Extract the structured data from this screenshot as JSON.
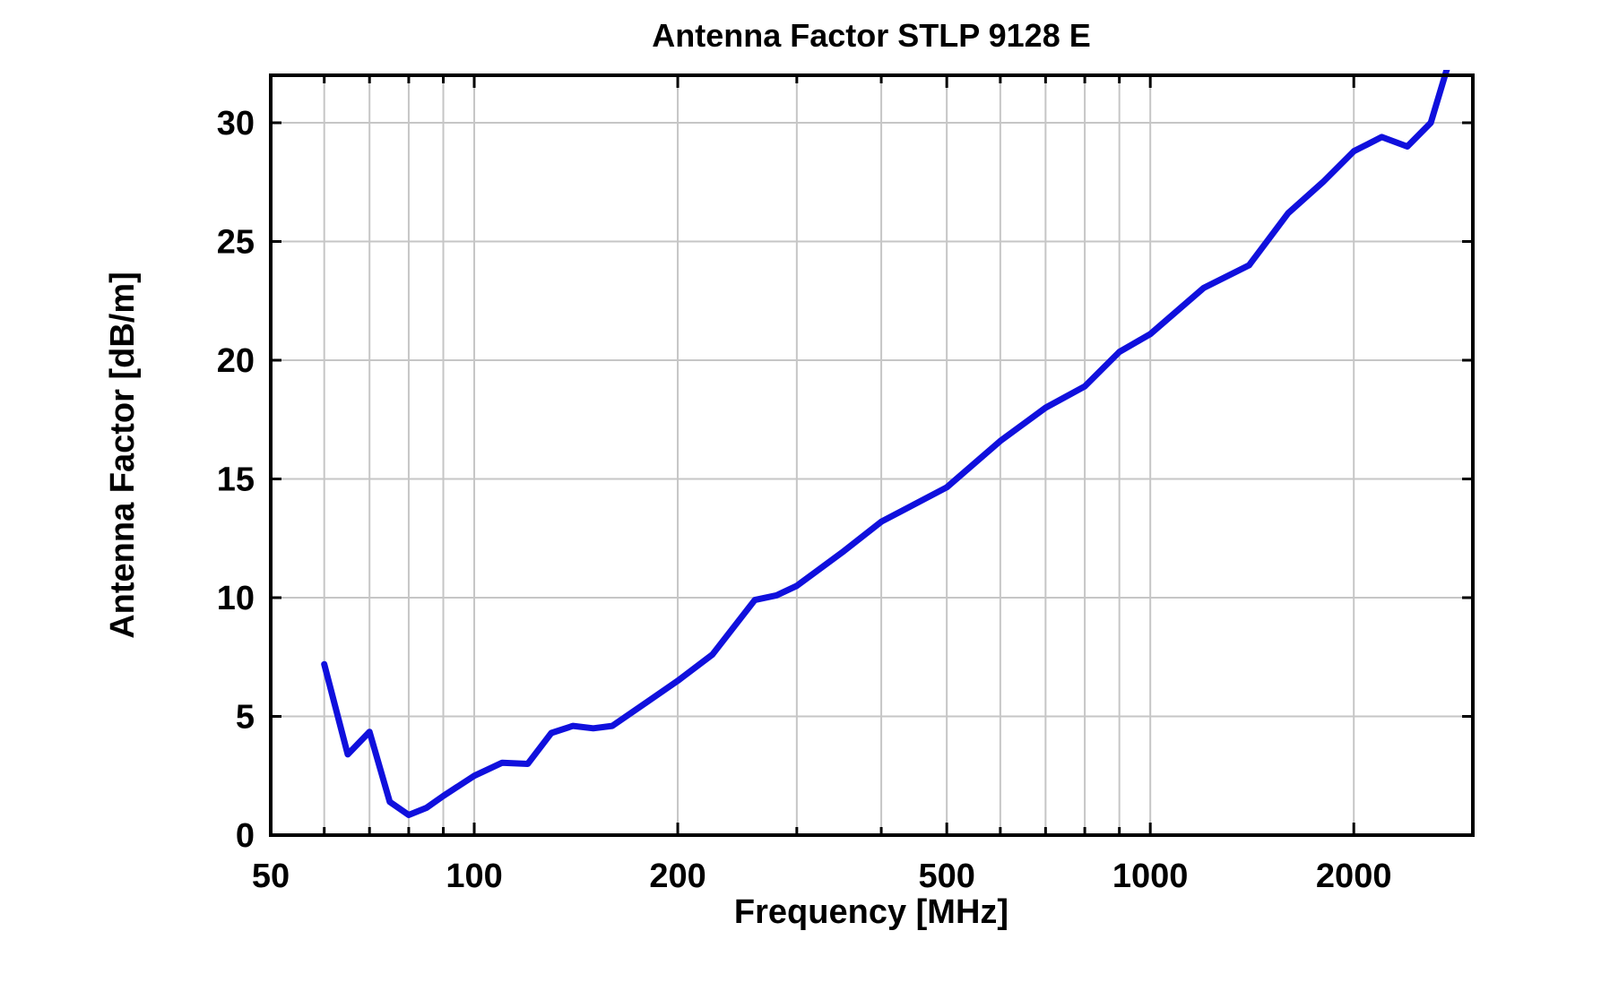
{
  "figure": {
    "background": "#ffffff",
    "frame_color": "#000000",
    "grid_color": "#c6c6c6"
  },
  "chart_data": {
    "type": "line",
    "title": "Antenna Factor STLP 9128 E",
    "xlabel": "Frequency [MHz]",
    "ylabel": "Antenna Factor [dB/m]",
    "x_scale": "log",
    "xlim": [
      50,
      3000
    ],
    "ylim": [
      0,
      32
    ],
    "grid": true,
    "legend": "none",
    "line_color": "#1010dd",
    "x_ticks_labeled": [
      {
        "value": 50,
        "label": "50"
      },
      {
        "value": 100,
        "label": "100"
      },
      {
        "value": 200,
        "label": "200"
      },
      {
        "value": 500,
        "label": "500"
      },
      {
        "value": 1000,
        "label": "1000"
      },
      {
        "value": 2000,
        "label": "2000"
      }
    ],
    "x_gridlines": [
      60,
      70,
      80,
      90,
      100,
      200,
      300,
      400,
      500,
      600,
      700,
      800,
      900,
      1000,
      2000,
      3000
    ],
    "y_ticks": [
      {
        "value": 0,
        "label": "0"
      },
      {
        "value": 5,
        "label": "5"
      },
      {
        "value": 10,
        "label": "10"
      },
      {
        "value": 15,
        "label": "15"
      },
      {
        "value": 20,
        "label": "20"
      },
      {
        "value": 25,
        "label": "25"
      },
      {
        "value": 30,
        "label": "30"
      }
    ],
    "series": [
      {
        "name": "Antenna Factor STLP 9128 E",
        "x_mhz": [
          60,
          65,
          70,
          75,
          80,
          85,
          90,
          100,
          110,
          120,
          130,
          140,
          150,
          160,
          180,
          200,
          225,
          260,
          280,
          300,
          350,
          400,
          500,
          600,
          700,
          800,
          900,
          1000,
          1200,
          1400,
          1600,
          1800,
          2000,
          2200,
          2400,
          2600,
          3000
        ],
        "af_db_m": [
          7.2,
          3.4,
          4.35,
          1.4,
          0.85,
          1.15,
          1.65,
          2.5,
          3.05,
          3.0,
          4.3,
          4.6,
          4.5,
          4.6,
          5.6,
          6.5,
          7.6,
          9.9,
          10.1,
          10.5,
          11.9,
          13.2,
          14.65,
          16.6,
          18.0,
          18.9,
          20.35,
          21.1,
          23.05,
          24.0,
          26.2,
          27.5,
          28.8,
          29.4,
          29.0,
          30.0,
          35.9
        ]
      }
    ]
  }
}
